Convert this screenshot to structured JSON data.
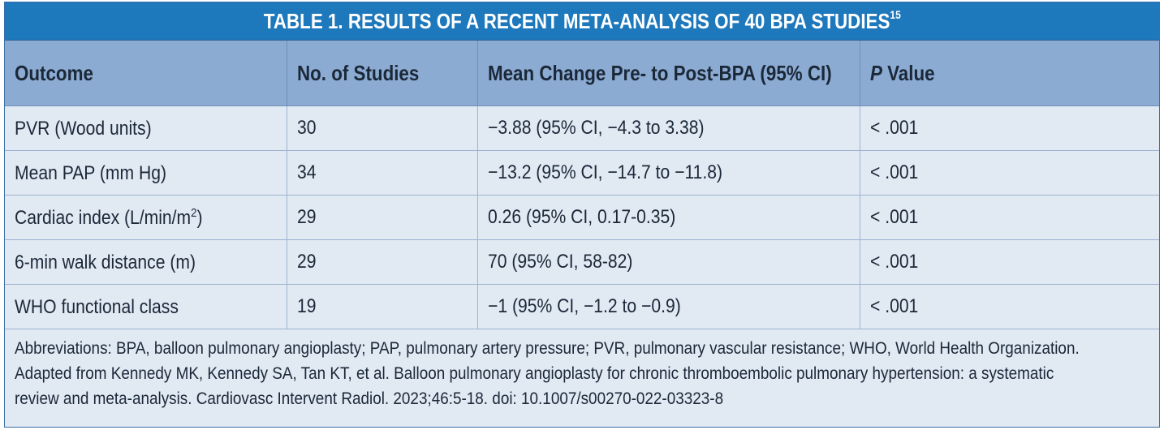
{
  "title": {
    "text": "TABLE 1.  RESULTS OF A RECENT META-ANALYSIS OF 40 BPA STUDIES",
    "superscript": "15"
  },
  "table": {
    "headers": {
      "outcome": "Outcome",
      "studies": "No. of Studies",
      "change": "Mean Change Pre- to Post-BPA (95% CI)",
      "p_italic": "P",
      "p_rest": " Value"
    },
    "rows": [
      {
        "outcome": "PVR (Wood units)",
        "outcome_sup": "",
        "outcome_tail": "",
        "studies": "30",
        "change": "−3.88 (95% CI, −4.3 to 3.38)",
        "p": "< .001"
      },
      {
        "outcome": "Mean PAP (mm Hg)",
        "outcome_sup": "",
        "outcome_tail": "",
        "studies": "34",
        "change": "−13.2 (95% CI, −14.7 to −11.8)",
        "p": "< .001"
      },
      {
        "outcome": "Cardiac index (L/min/m",
        "outcome_sup": "2",
        "outcome_tail": ")",
        "studies": "29",
        "change": "0.26 (95% CI, 0.17-0.35)",
        "p": "< .001"
      },
      {
        "outcome": "6-min walk distance (m)",
        "outcome_sup": "",
        "outcome_tail": "",
        "studies": "29",
        "change": "70 (95% CI, 58-82)",
        "p": "< .001"
      },
      {
        "outcome": "WHO functional class",
        "outcome_sup": "",
        "outcome_tail": "",
        "studies": "19",
        "change": "−1 (95% CI, −1.2 to −0.9)",
        "p": "< .001"
      }
    ]
  },
  "footnote": {
    "lines": [
      "Abbreviations: BPA, balloon pulmonary angioplasty; PAP, pulmonary artery pressure; PVR, pulmonary vascular resistance; WHO, World Health Organization.",
      "Adapted from Kennedy MK, Kennedy SA, Tan KT, et al. Balloon pulmonary angioplasty for chronic thromboembolic pulmonary hypertension: a systematic",
      "review and meta-analysis. Cardiovasc Intervent Radiol. 2023;46:5-18. doi: 10.1007/s00270-022-03323-8"
    ]
  },
  "colors": {
    "title_bar": "#1e78bc",
    "header_row": "#8cabd3",
    "body": "#e1e9f3",
    "text": "#1b2838"
  }
}
